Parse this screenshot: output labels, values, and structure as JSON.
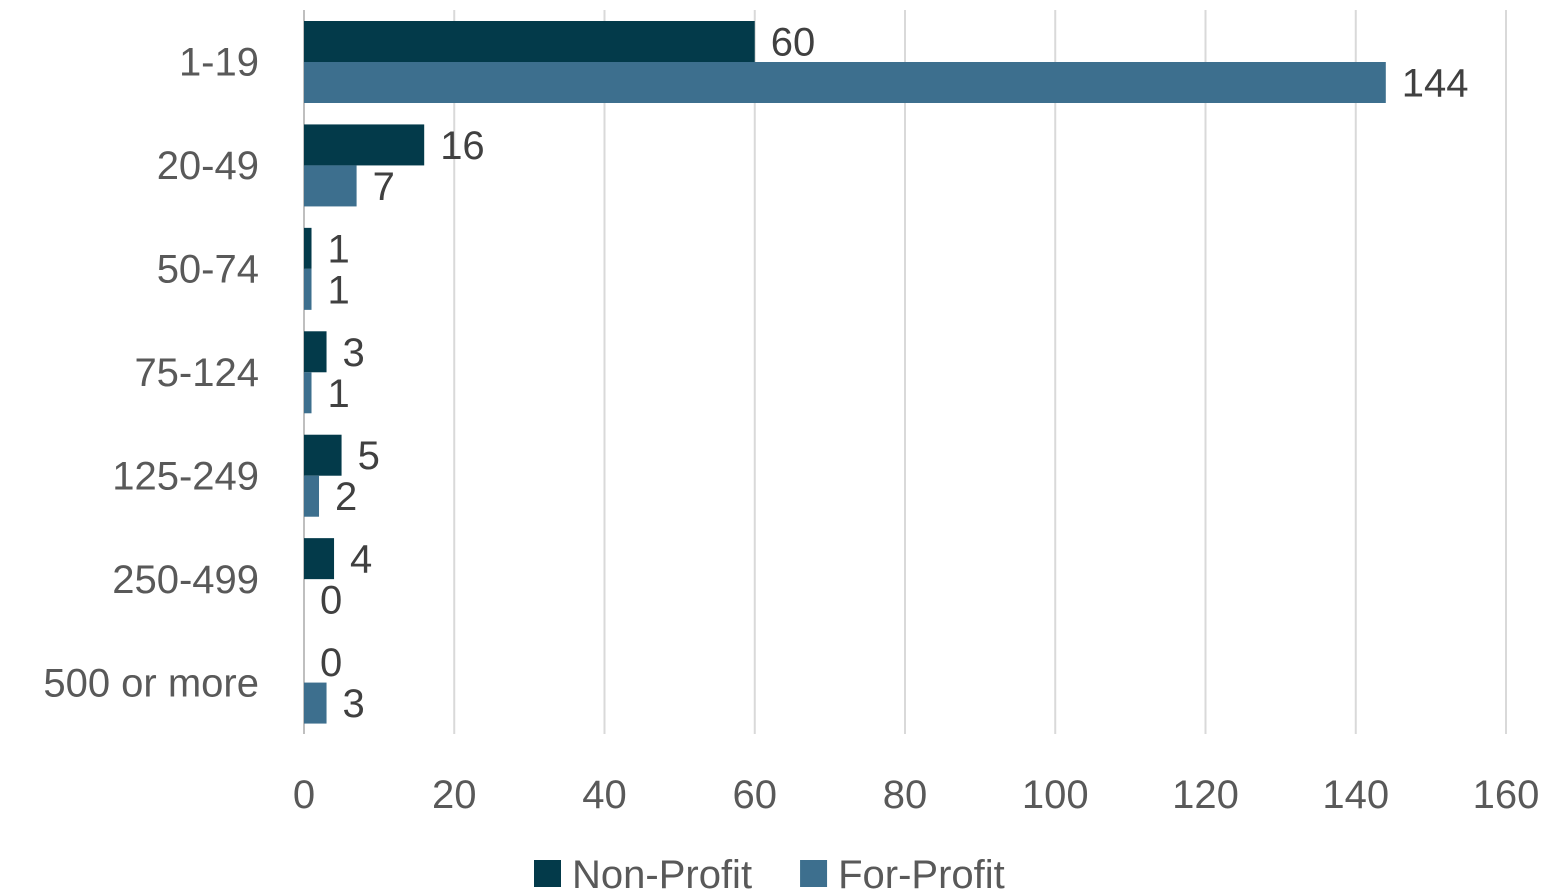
{
  "chart_data": {
    "type": "bar",
    "orientation": "horizontal",
    "categories": [
      "1-19",
      "20-49",
      "50-74",
      "75-124",
      "125-249",
      "250-499",
      "500 or more"
    ],
    "series": [
      {
        "name": "Non-Profit",
        "values": [
          60,
          16,
          1,
          3,
          5,
          4,
          0
        ],
        "color": "#033a4a"
      },
      {
        "name": "For-Profit",
        "values": [
          144,
          7,
          1,
          1,
          2,
          0,
          3
        ],
        "color": "#3d6f8e"
      }
    ],
    "xlim": [
      0,
      160
    ],
    "x_ticks": [
      0,
      20,
      40,
      60,
      80,
      100,
      120,
      140,
      160
    ],
    "grid": true,
    "legend_position": "bottom",
    "show_data_labels": true
  }
}
